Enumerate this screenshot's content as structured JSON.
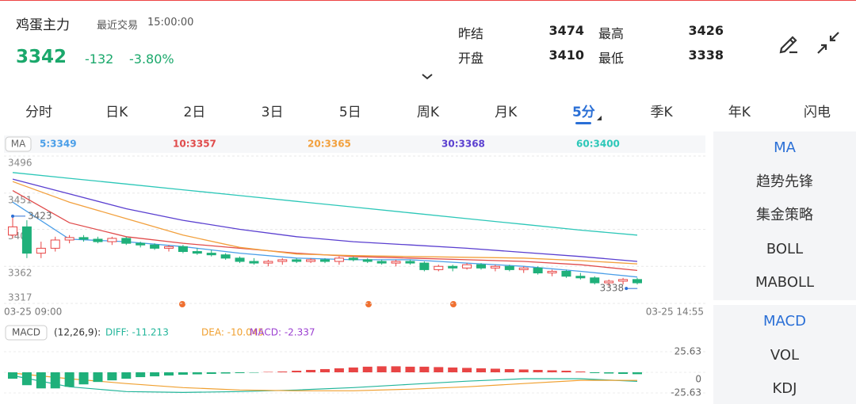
{
  "header": {
    "name": "鸡蛋主力",
    "trade_label": "最近交易",
    "time": "15:00:00",
    "price": "3342",
    "change": "-132",
    "change_pct": "-3.80%"
  },
  "stats": [
    {
      "label": "昨结",
      "value": "3474"
    },
    {
      "label": "最高",
      "value": "3426"
    },
    {
      "label": "开盘",
      "value": "3410"
    },
    {
      "label": "最低",
      "value": "3338"
    }
  ],
  "tabs": [
    "分时",
    "日K",
    "2日",
    "3日",
    "5日",
    "周K",
    "月K",
    "5分",
    "季K",
    "年K",
    "闪电"
  ],
  "active_tab": 7,
  "side_menu": {
    "main": [
      "MA",
      "趋势先锋",
      "集金策略",
      "BOLL",
      "MABOLL"
    ],
    "sub": [
      "MACD",
      "VOL",
      "KDJ"
    ]
  },
  "chart_data": [
    {
      "type": "candlestick",
      "indicator": "MA",
      "categories": [
        "03-25 09:00",
        null,
        null,
        null,
        null,
        null,
        null,
        null,
        null,
        null,
        null,
        null,
        null,
        null,
        null,
        null,
        null,
        null,
        null,
        null,
        null,
        null,
        null,
        null,
        null,
        null,
        null,
        null,
        null,
        null,
        null,
        null,
        null,
        null,
        null,
        null,
        null,
        null,
        null,
        null,
        null,
        null,
        null,
        null,
        "03-25 14:55"
      ],
      "open": [
        3400,
        3410,
        3378,
        3384,
        3394,
        3397,
        3395,
        3392,
        3396,
        3390,
        3388,
        3384,
        3386,
        3380,
        3378,
        3376,
        3372,
        3368,
        3366,
        3368,
        3370,
        3368,
        3370,
        3368,
        3372,
        3370,
        3368,
        3366,
        3368,
        3366,
        3358,
        3362,
        3360,
        3364,
        3360,
        3362,
        3358,
        3360,
        3354,
        3356,
        3350,
        3348,
        3342,
        3344,
        3346
      ],
      "high": [
        3423,
        3418,
        3392,
        3398,
        3400,
        3400,
        3398,
        3398,
        3398,
        3392,
        3390,
        3388,
        3388,
        3384,
        3382,
        3378,
        3374,
        3372,
        3370,
        3372,
        3372,
        3372,
        3372,
        3374,
        3374,
        3372,
        3370,
        3370,
        3370,
        3368,
        3364,
        3364,
        3366,
        3366,
        3364,
        3364,
        3362,
        3362,
        3358,
        3358,
        3354,
        3350,
        3346,
        3348,
        3348
      ],
      "low": [
        3396,
        3372,
        3372,
        3380,
        3390,
        3392,
        3390,
        3388,
        3388,
        3385,
        3382,
        3380,
        3378,
        3376,
        3374,
        3370,
        3366,
        3364,
        3362,
        3364,
        3366,
        3366,
        3366,
        3364,
        3368,
        3366,
        3364,
        3362,
        3364,
        3356,
        3356,
        3356,
        3358,
        3358,
        3356,
        3356,
        3354,
        3352,
        3350,
        3348,
        3346,
        3340,
        3338,
        3340,
        3340
      ],
      "close": [
        3410,
        3378,
        3384,
        3394,
        3397,
        3395,
        3392,
        3396,
        3390,
        3388,
        3384,
        3386,
        3380,
        3378,
        3376,
        3372,
        3368,
        3366,
        3368,
        3370,
        3368,
        3370,
        3368,
        3372,
        3370,
        3368,
        3366,
        3368,
        3366,
        3358,
        3362,
        3360,
        3364,
        3360,
        3362,
        3358,
        3360,
        3354,
        3356,
        3350,
        3348,
        3342,
        3344,
        3346,
        3342
      ],
      "up_color": "#e84545",
      "down_color": "#1fb07a",
      "ylim": [
        3317,
        3496
      ],
      "yticks": [
        3496,
        3451,
        3407,
        3362,
        3317
      ],
      "grid": true,
      "high_label": 3423,
      "low_label": 3338,
      "series": [
        {
          "name": "5:3349",
          "color": "#4a9ee8",
          "x": [
            0,
            4,
            8,
            12,
            16,
            20,
            24,
            28,
            32,
            36,
            40,
            44
          ],
          "values": [
            3440,
            3395,
            3392,
            3386,
            3378,
            3372,
            3370,
            3370,
            3366,
            3362,
            3356,
            3349
          ]
        },
        {
          "name": "10:3357",
          "color": "#e04b4b",
          "x": [
            0,
            4,
            8,
            12,
            16,
            20,
            24,
            28,
            32,
            36,
            40,
            44
          ],
          "values": [
            3454,
            3415,
            3398,
            3390,
            3384,
            3378,
            3374,
            3372,
            3370,
            3368,
            3364,
            3357
          ]
        },
        {
          "name": "20:3365",
          "color": "#f2a03d",
          "x": [
            0,
            4,
            8,
            12,
            16,
            20,
            24,
            28,
            32,
            36,
            40,
            44
          ],
          "values": [
            3465,
            3440,
            3420,
            3400,
            3385,
            3377,
            3375,
            3374,
            3373,
            3372,
            3369,
            3365
          ]
        },
        {
          "name": "30:3368",
          "color": "#5a3fd0",
          "x": [
            0,
            4,
            8,
            12,
            16,
            20,
            24,
            28,
            32,
            36,
            40,
            44
          ],
          "values": [
            3468,
            3450,
            3432,
            3418,
            3407,
            3398,
            3392,
            3388,
            3384,
            3379,
            3374,
            3368
          ]
        },
        {
          "name": "60:3400",
          "color": "#2cc7b8",
          "x": [
            0,
            4,
            8,
            12,
            16,
            20,
            24,
            28,
            32,
            36,
            40,
            44
          ],
          "values": [
            3476,
            3469,
            3462,
            3455,
            3448,
            3441,
            3434,
            3427,
            3420,
            3413,
            3406,
            3400
          ]
        }
      ]
    },
    {
      "type": "macd",
      "indicator": "MACD",
      "params": "(12,26,9):",
      "ylim": [
        -25.63,
        25.63
      ],
      "yticks": [
        25.63,
        0,
        -25.63
      ],
      "series": [
        {
          "name": "DIFF: -11.213",
          "type": "line",
          "color": "#22b59a",
          "x": [
            0,
            4,
            8,
            12,
            16,
            20,
            24,
            28,
            32,
            36,
            40,
            44
          ],
          "values": [
            -4,
            -18,
            -24,
            -25,
            -24,
            -22,
            -19,
            -15,
            -11,
            -8,
            -8,
            -11.213
          ]
        },
        {
          "name": "DEA: -10.045",
          "type": "line",
          "color": "#f0a030",
          "x": [
            0,
            4,
            8,
            12,
            16,
            20,
            24,
            28,
            32,
            36,
            40,
            44
          ],
          "values": [
            -1,
            -8,
            -14,
            -19,
            -22,
            -23,
            -23,
            -21,
            -18,
            -14,
            -10,
            -10.045
          ]
        },
        {
          "name": "MACD: -2.337",
          "type": "bar",
          "color": "#9b3fd1",
          "up_color": "#e84545",
          "down_color": "#1fb07a",
          "values": [
            -8,
            -16,
            -20,
            -20,
            -18,
            -15,
            -12,
            -10,
            -8,
            -6,
            -5,
            -4,
            -3,
            -2.5,
            -2,
            -1.5,
            -1,
            -0.5,
            0.5,
            1,
            2,
            3,
            4,
            5,
            6,
            7,
            7.5,
            7.5,
            7,
            7,
            6.5,
            6,
            5.5,
            5,
            4.5,
            4,
            3.5,
            3,
            2.5,
            2,
            1,
            -1,
            -1.5,
            -2,
            -2.337
          ]
        }
      ]
    }
  ]
}
